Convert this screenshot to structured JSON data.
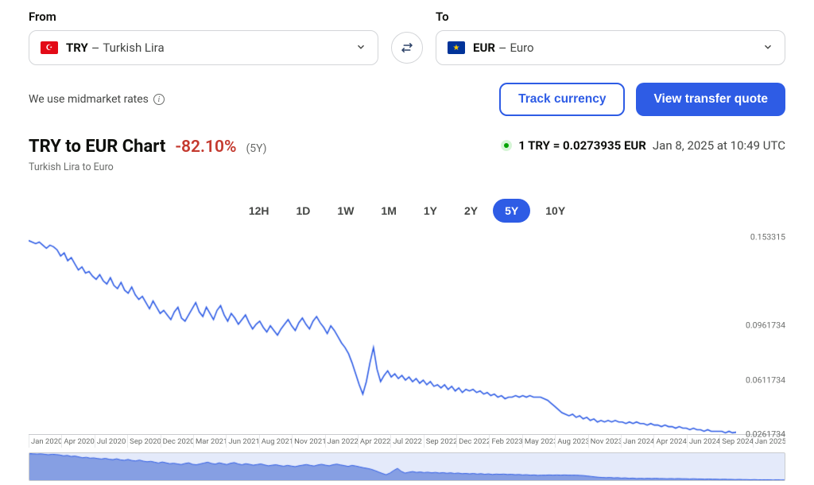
{
  "from": {
    "label": "From",
    "code": "TRY",
    "name": "Turkish Lira",
    "flag_glyph": "☪"
  },
  "to": {
    "label": "To",
    "code": "EUR",
    "name": "Euro",
    "flag_glyph": "★"
  },
  "midmarket_note": "We use midmarket rates",
  "actions": {
    "track": "Track currency",
    "quote": "View transfer quote"
  },
  "chart": {
    "title": "TRY to EUR Chart",
    "subtitle": "Turkish Lira to Euro",
    "delta_text": "-82.10%",
    "delta_color": "#c43a2f",
    "period_tag": "(5Y)",
    "rate_text_prefix": "1 TRY = ",
    "rate_value": "0.0273935",
    "rate_text_suffix": " EUR",
    "timestamp": "Jan 8, 2025 at 10:49 UTC",
    "type": "line",
    "line_color": "#2e5ce5",
    "line_width": 1.6,
    "brush_fill": "#3a63d1",
    "brush_fill_opacity": 0.55,
    "brush_selection_overlay": "#c9d6f5",
    "axis_color": "#c9cbce",
    "tick_font_size": 10.5,
    "ylim": [
      0.0261734,
      0.153315
    ],
    "y_ticks": [
      {
        "v": 0.153315,
        "label": "0.153315"
      },
      {
        "v": 0.0961734,
        "label": "0.0961734"
      },
      {
        "v": 0.0611734,
        "label": "0.0611734"
      },
      {
        "v": 0.0261734,
        "label": "0.0261734"
      }
    ],
    "x_ticks": [
      "Jan 2020",
      "Apr 2020",
      "Jul 2020",
      "Sep 2020",
      "Dec 2020",
      "Mar 2021",
      "Jun 2021",
      "Aug 2021",
      "Nov 2021",
      "Jan 2022",
      "Apr 2022",
      "Jul 2022",
      "Sep 2022",
      "Dec 2022",
      "Feb 2023",
      "May 2023",
      "Aug 2023",
      "Nov 2023",
      "Jan 2024",
      "Apr 2024",
      "Jun 2024",
      "Sep 2024",
      "Jan 2025"
    ],
    "series": [
      0.151,
      0.15,
      0.149,
      0.15,
      0.148,
      0.146,
      0.148,
      0.147,
      0.145,
      0.141,
      0.143,
      0.138,
      0.14,
      0.136,
      0.132,
      0.134,
      0.13,
      0.131,
      0.128,
      0.126,
      0.129,
      0.125,
      0.123,
      0.127,
      0.122,
      0.12,
      0.124,
      0.119,
      0.117,
      0.121,
      0.116,
      0.113,
      0.115,
      0.111,
      0.107,
      0.112,
      0.108,
      0.104,
      0.106,
      0.103,
      0.1,
      0.105,
      0.108,
      0.101,
      0.099,
      0.103,
      0.107,
      0.111,
      0.105,
      0.102,
      0.108,
      0.104,
      0.1,
      0.106,
      0.109,
      0.103,
      0.099,
      0.104,
      0.101,
      0.097,
      0.1,
      0.103,
      0.098,
      0.094,
      0.097,
      0.099,
      0.095,
      0.092,
      0.096,
      0.093,
      0.09,
      0.094,
      0.097,
      0.1,
      0.096,
      0.093,
      0.098,
      0.101,
      0.097,
      0.094,
      0.099,
      0.102,
      0.098,
      0.095,
      0.091,
      0.096,
      0.093,
      0.089,
      0.085,
      0.082,
      0.078,
      0.072,
      0.065,
      0.058,
      0.052,
      0.06,
      0.072,
      0.082,
      0.068,
      0.06,
      0.064,
      0.067,
      0.063,
      0.065,
      0.062,
      0.064,
      0.061,
      0.063,
      0.06,
      0.062,
      0.059,
      0.061,
      0.058,
      0.06,
      0.057,
      0.058,
      0.056,
      0.058,
      0.055,
      0.057,
      0.054,
      0.056,
      0.053,
      0.055,
      0.054,
      0.055,
      0.053,
      0.054,
      0.052,
      0.053,
      0.051,
      0.052,
      0.05,
      0.051,
      0.049,
      0.05,
      0.05,
      0.051,
      0.05,
      0.051,
      0.05,
      0.051,
      0.05,
      0.05,
      0.05,
      0.049,
      0.048,
      0.046,
      0.044,
      0.042,
      0.04,
      0.039,
      0.038,
      0.039,
      0.037,
      0.038,
      0.036,
      0.037,
      0.035,
      0.036,
      0.034,
      0.035,
      0.034,
      0.035,
      0.034,
      0.035,
      0.034,
      0.034,
      0.033,
      0.034,
      0.033,
      0.034,
      0.033,
      0.033,
      0.032,
      0.033,
      0.032,
      0.032,
      0.031,
      0.032,
      0.031,
      0.031,
      0.03,
      0.031,
      0.03,
      0.03,
      0.029,
      0.03,
      0.029,
      0.029,
      0.028,
      0.029,
      0.028,
      0.028,
      0.028,
      0.028,
      0.027,
      0.028,
      0.027,
      0.0274
    ]
  },
  "ranges": [
    {
      "label": "12H",
      "active": false
    },
    {
      "label": "1D",
      "active": false
    },
    {
      "label": "1W",
      "active": false
    },
    {
      "label": "1M",
      "active": false
    },
    {
      "label": "1Y",
      "active": false
    },
    {
      "label": "2Y",
      "active": false
    },
    {
      "label": "5Y",
      "active": true
    },
    {
      "label": "10Y",
      "active": false
    }
  ]
}
